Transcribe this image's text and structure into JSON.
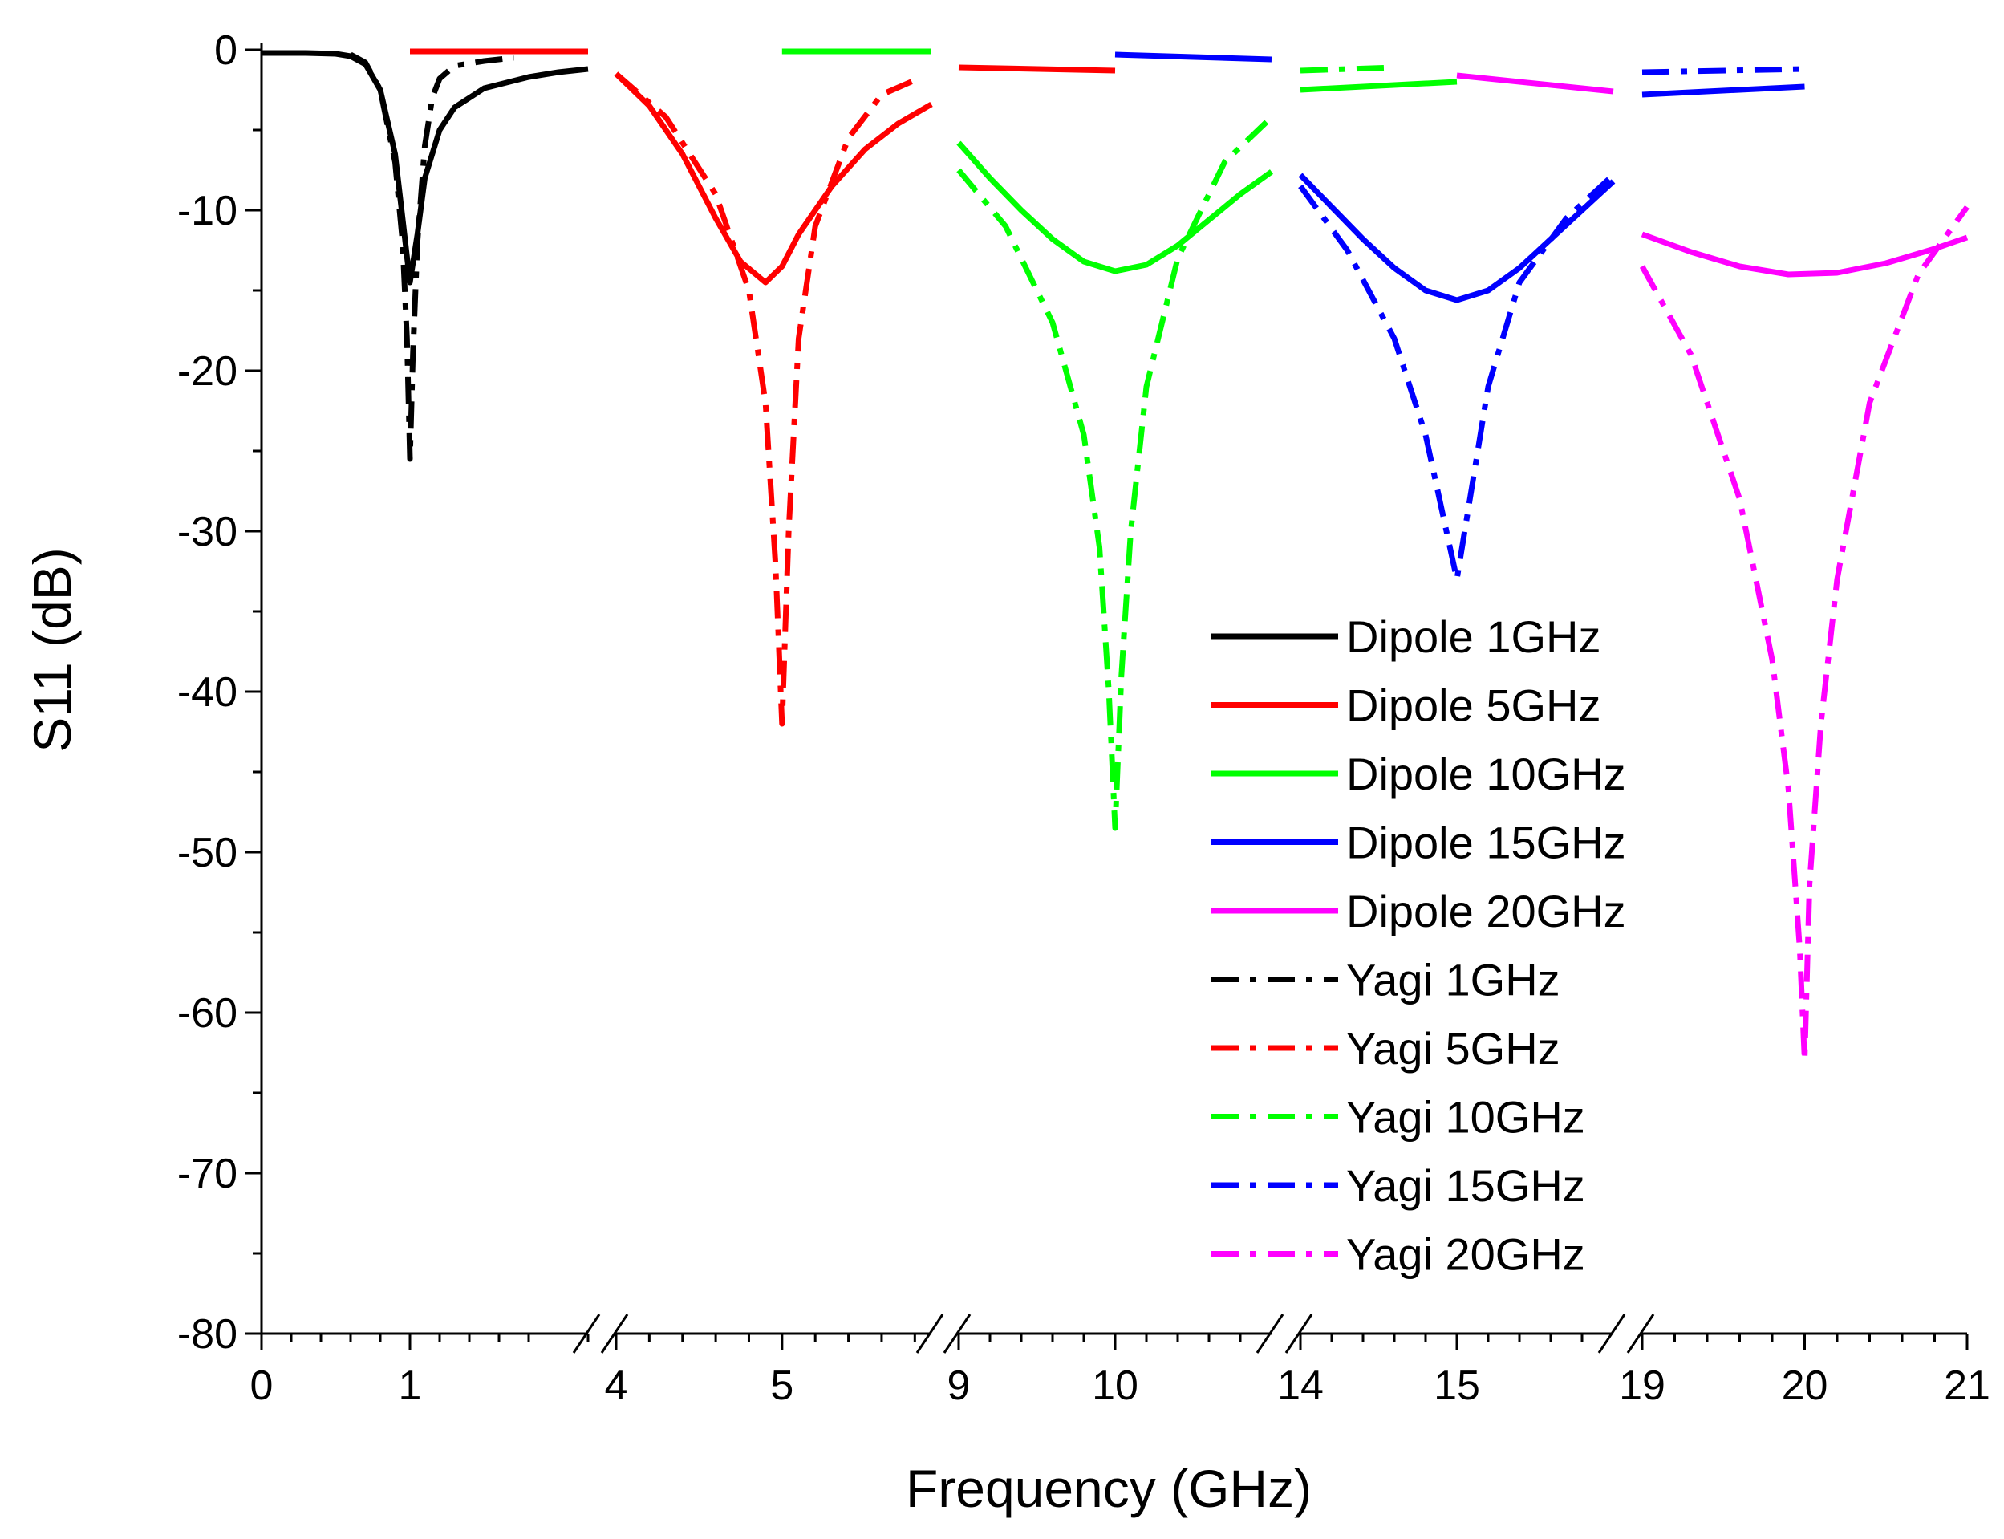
{
  "chart_data": {
    "type": "line",
    "title": "",
    "xlabel": "Frequency (GHz)",
    "ylabel": "S11 (dB)",
    "ylim": [
      -80,
      0
    ],
    "yticks": [
      0,
      -10,
      -20,
      -30,
      -40,
      -50,
      -60,
      -70,
      -80
    ],
    "ytick_labels": [
      "0",
      "-10",
      "-20",
      "-30",
      "-40",
      "-50",
      "-60",
      "-70",
      "-80"
    ],
    "grid": false,
    "legend_position": "right",
    "x_axis_breaks": "broken axis with 5 segments",
    "x_segments": [
      {
        "range": [
          0,
          2.2
        ],
        "ticks": [
          0,
          1
        ],
        "tick_labels": [
          "0",
          "1"
        ]
      },
      {
        "range": [
          4,
          5.9
        ],
        "ticks": [
          4,
          5
        ],
        "tick_labels": [
          "4",
          "5"
        ]
      },
      {
        "range": [
          9,
          11.0
        ],
        "ticks": [
          9,
          10
        ],
        "tick_labels": [
          "9",
          "10"
        ]
      },
      {
        "range": [
          14,
          16.0
        ],
        "ticks": [
          14,
          15
        ],
        "tick_labels": [
          "14",
          "15"
        ]
      },
      {
        "range": [
          19,
          21
        ],
        "ticks": [
          19,
          20,
          21
        ],
        "tick_labels": [
          "19",
          "20",
          "21"
        ]
      }
    ],
    "series": [
      {
        "name": "Dipole 1GHz",
        "color": "#000000",
        "style": "solid",
        "segment": 0,
        "x": [
          0,
          0.3,
          0.5,
          0.6,
          0.7,
          0.8,
          0.9,
          0.95,
          1.0,
          1.05,
          1.1,
          1.2,
          1.3,
          1.5,
          1.8,
          2.0,
          2.2
        ],
        "y": [
          -0.2,
          -0.2,
          -0.25,
          -0.4,
          -0.9,
          -2.5,
          -6.5,
          -10.5,
          -14.5,
          -11.5,
          -8.0,
          -5.0,
          -3.6,
          -2.4,
          -1.7,
          -1.4,
          -1.2
        ]
      },
      {
        "name": "Dipole 5GHz",
        "color": "#ff0000",
        "style": "solid",
        "segment": 1,
        "x": [
          4.0,
          4.2,
          4.4,
          4.6,
          4.75,
          4.9,
          5.0,
          5.1,
          5.3,
          5.5,
          5.7,
          5.9
        ],
        "y": [
          -1.5,
          -3.5,
          -6.5,
          -10.5,
          -13.2,
          -14.5,
          -13.5,
          -11.5,
          -8.5,
          -6.2,
          -4.6,
          -3.4
        ]
      },
      {
        "name": "Dipole 10GHz",
        "color": "#00ff00",
        "style": "solid",
        "segment": 2,
        "x": [
          9.0,
          9.2,
          9.4,
          9.6,
          9.8,
          10.0,
          10.2,
          10.4,
          10.6,
          10.8,
          11.0
        ],
        "y": [
          -5.8,
          -8.0,
          -10.0,
          -11.8,
          -13.2,
          -13.8,
          -13.4,
          -12.2,
          -10.6,
          -9.0,
          -7.6
        ]
      },
      {
        "name": "Dipole 15GHz",
        "color": "#0000ff",
        "style": "solid",
        "segment": 3,
        "x": [
          14.0,
          14.2,
          14.4,
          14.6,
          14.8,
          15.0,
          15.2,
          15.4,
          15.6,
          15.8,
          16.0
        ],
        "y": [
          -7.8,
          -9.8,
          -11.8,
          -13.6,
          -15.0,
          -15.6,
          -15.0,
          -13.6,
          -11.8,
          -10.0,
          -8.2
        ]
      },
      {
        "name": "Dipole 20GHz",
        "color": "#ff00ff",
        "style": "solid",
        "segment": 4,
        "x": [
          19.0,
          19.3,
          19.6,
          19.9,
          20.2,
          20.5,
          20.8,
          21.0
        ],
        "y": [
          -11.5,
          -12.6,
          -13.5,
          -14.0,
          -13.9,
          -13.3,
          -12.4,
          -11.7
        ]
      },
      {
        "name": "Yagi 1GHz",
        "color": "#000000",
        "style": "dashdot",
        "segment": 0,
        "x": [
          0.6,
          0.7,
          0.8,
          0.9,
          0.95,
          0.98,
          1.0,
          1.02,
          1.05,
          1.1,
          1.15,
          1.2,
          1.3,
          1.5,
          1.7
        ],
        "y": [
          -0.3,
          -0.8,
          -2.5,
          -7.0,
          -12.0,
          -18.0,
          -25.5,
          -19.0,
          -12.0,
          -6.0,
          -3.0,
          -1.8,
          -1.0,
          -0.7,
          -0.5
        ]
      },
      {
        "name": "Yagi 5GHz",
        "color": "#ff0000",
        "style": "dashdot",
        "segment": 1,
        "x": [
          4.0,
          4.3,
          4.6,
          4.8,
          4.9,
          4.96,
          5.0,
          5.04,
          5.1,
          5.2,
          5.4,
          5.6,
          5.8
        ],
        "y": [
          -1.5,
          -4.2,
          -9.0,
          -15.0,
          -22.0,
          -32.0,
          -42.0,
          -30.0,
          -18.0,
          -11.0,
          -5.5,
          -2.8,
          -1.9
        ]
      },
      {
        "name": "Yagi 10GHz",
        "color": "#00ff00",
        "style": "dashdot",
        "segment": 2,
        "x": [
          9.0,
          9.3,
          9.6,
          9.8,
          9.9,
          9.96,
          10.0,
          10.04,
          10.1,
          10.2,
          10.4,
          10.7,
          11.0
        ],
        "y": [
          -7.5,
          -11.0,
          -17.0,
          -24.0,
          -31.0,
          -40.0,
          -48.5,
          -39.0,
          -30.0,
          -21.0,
          -13.0,
          -7.0,
          -4.2
        ]
      },
      {
        "name": "Yagi 15GHz",
        "color": "#0000ff",
        "style": "dashdot",
        "segment": 3,
        "x": [
          14.0,
          14.3,
          14.6,
          14.8,
          14.9,
          15.0,
          15.1,
          15.2,
          15.4,
          15.7,
          16.0
        ],
        "y": [
          -8.5,
          -12.5,
          -18.0,
          -24.0,
          -28.5,
          -33.0,
          -27.0,
          -21.0,
          -14.5,
          -10.5,
          -7.8
        ]
      },
      {
        "name": "Yagi 20GHz",
        "color": "#ff00ff",
        "style": "dashdot",
        "segment": 4,
        "x": [
          19.0,
          19.3,
          19.6,
          19.8,
          19.9,
          19.97,
          20.0,
          20.03,
          20.1,
          20.2,
          20.4,
          20.7,
          21.0
        ],
        "y": [
          -13.5,
          -19.0,
          -28.0,
          -38.0,
          -46.0,
          -56.0,
          -63.0,
          -52.0,
          -42.0,
          -33.0,
          -22.0,
          -14.0,
          -9.8
        ]
      },
      {
        "name": "Dipole 1GHz (upper band)",
        "legend": false,
        "color": "#ff0000",
        "style": "solid",
        "segment": 0,
        "x": [
          1.0,
          2.2
        ],
        "y": [
          -0.1,
          -0.1
        ]
      },
      {
        "name": "Dipole 5GHz (upper band)",
        "legend": false,
        "color": "#00ff00",
        "style": "solid",
        "segment": 1,
        "x": [
          5.0,
          5.9
        ],
        "y": [
          -0.1,
          -0.1
        ]
      },
      {
        "name": "Dipole 10GHz (shared axis, lower band)",
        "legend": false,
        "color": "#ff0000",
        "style": "solid",
        "segment": 2,
        "x": [
          9.0,
          10.0
        ],
        "y": [
          -1.1,
          -1.3
        ]
      },
      {
        "name": "Dipole 10GHz (upper band)",
        "legend": false,
        "color": "#0000ff",
        "style": "solid",
        "segment": 2,
        "x": [
          10.0,
          11.0
        ],
        "y": [
          -0.3,
          -0.6
        ]
      },
      {
        "name": "Dipole 15GHz (lower band)",
        "legend": false,
        "color": "#00ff00",
        "style": "solid",
        "segment": 3,
        "x": [
          14.0,
          15.0
        ],
        "y": [
          -2.5,
          -2.0
        ]
      },
      {
        "name": "Yagi 15GHz (lower band)",
        "legend": false,
        "color": "#00ff00",
        "style": "dashdot",
        "segment": 3,
        "x": [
          14.0,
          14.6
        ],
        "y": [
          -1.3,
          -1.1
        ]
      },
      {
        "name": "Dipole 15GHz (upper band)",
        "legend": false,
        "color": "#ff00ff",
        "style": "solid",
        "segment": 3,
        "x": [
          15.0,
          16.0
        ],
        "y": [
          -1.6,
          -2.6
        ]
      },
      {
        "name": "Dipole 20GHz (lower band)",
        "legend": false,
        "color": "#0000ff",
        "style": "solid",
        "segment": 4,
        "x": [
          19.0,
          20.0
        ],
        "y": [
          -2.8,
          -2.3
        ]
      },
      {
        "name": "Yagi 20GHz (lower band)",
        "legend": false,
        "color": "#0000ff",
        "style": "dashdot",
        "segment": 4,
        "x": [
          19.0,
          20.0
        ],
        "y": [
          -1.4,
          -1.2
        ]
      }
    ],
    "legend": [
      {
        "label": "Dipole 1GHz",
        "color": "#000000",
        "style": "solid"
      },
      {
        "label": "Dipole 5GHz",
        "color": "#ff0000",
        "style": "solid"
      },
      {
        "label": "Dipole 10GHz",
        "color": "#00ff00",
        "style": "solid"
      },
      {
        "label": "Dipole 15GHz",
        "color": "#0000ff",
        "style": "solid"
      },
      {
        "label": "Dipole 20GHz",
        "color": "#ff00ff",
        "style": "solid"
      },
      {
        "label": "Yagi 1GHz",
        "color": "#000000",
        "style": "dashdot"
      },
      {
        "label": "Yagi 5GHz",
        "color": "#ff0000",
        "style": "dashdot"
      },
      {
        "label": "Yagi 10GHz",
        "color": "#00ff00",
        "style": "dashdot"
      },
      {
        "label": "Yagi 15GHz",
        "color": "#0000ff",
        "style": "dashdot"
      },
      {
        "label": "Yagi 20GHz",
        "color": "#ff00ff",
        "style": "dashdot"
      }
    ]
  }
}
